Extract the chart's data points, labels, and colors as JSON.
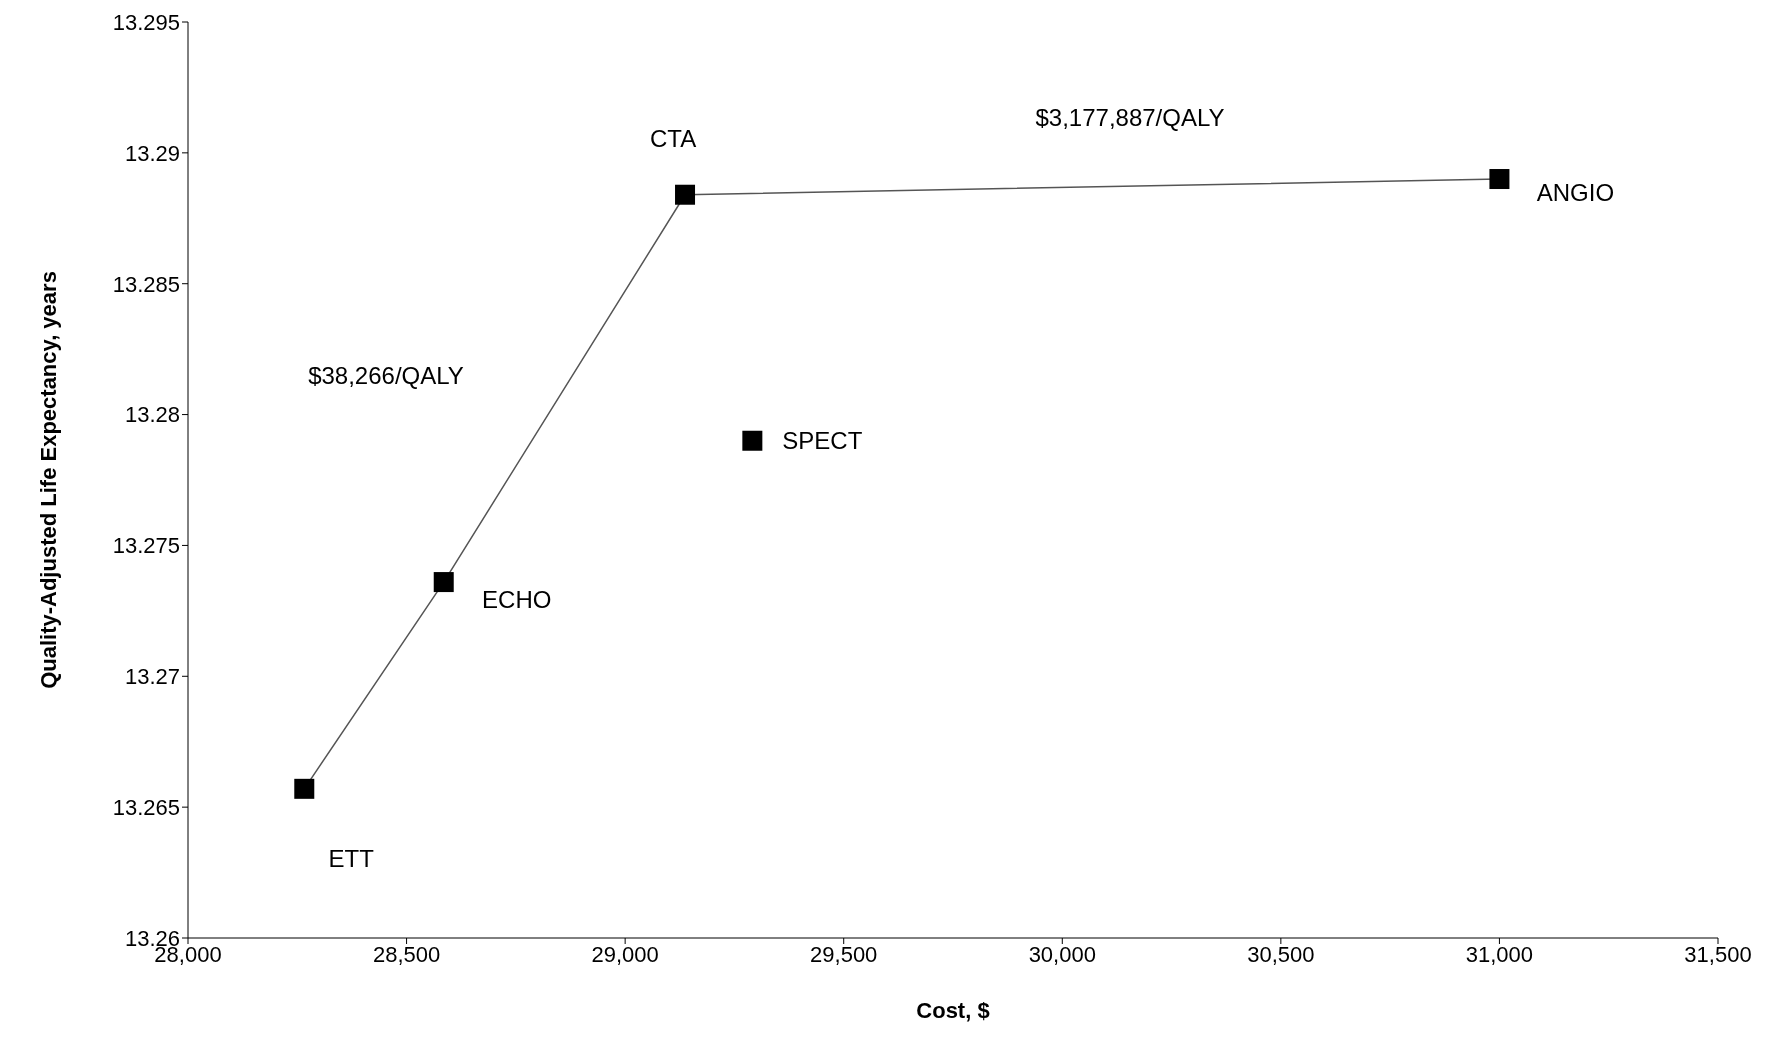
{
  "chart_data": {
    "type": "scatter",
    "xlabel": "Cost, $",
    "ylabel": "Quality-Adjusted Life Expectancy, years",
    "xlim": [
      28000,
      31500
    ],
    "xticks": [
      {
        "value": 28000,
        "label": "28,000"
      },
      {
        "value": 28500,
        "label": "28,500"
      },
      {
        "value": 29000,
        "label": "29,000"
      },
      {
        "value": 29500,
        "label": "29,500"
      },
      {
        "value": 30000,
        "label": "30,000"
      },
      {
        "value": 30500,
        "label": "30,500"
      },
      {
        "value": 31000,
        "label": "31,000"
      },
      {
        "value": 31500,
        "label": "31,500"
      }
    ],
    "ylim": [
      13.26,
      13.295
    ],
    "yticks": [
      13.26,
      13.265,
      13.27,
      13.275,
      13.28,
      13.285,
      13.29,
      13.295
    ],
    "series": [
      {
        "type": "line",
        "color": "#000000",
        "x": [
          28266,
          28585,
          29137,
          31000
        ],
        "values": [
          13.2657,
          13.2736,
          13.2884,
          13.289
        ]
      },
      {
        "color": "#000000",
        "x": [
          29291
        ],
        "values": [
          13.279
        ]
      }
    ],
    "marker": "square",
    "line_style": "solid",
    "grid": false,
    "legend": false,
    "annotations": [
      {
        "text": "ETT",
        "x": 28266,
        "y": 13.2657
      },
      {
        "text": "ECHO",
        "x": 28585,
        "y": 13.2736
      },
      {
        "text": "CTA",
        "x": 29137,
        "y": 13.2884
      },
      {
        "text": "SPECT",
        "x": 29291,
        "y": 13.279
      },
      {
        "text": "ANGIO",
        "x": 31000,
        "y": 13.289
      },
      "$38,266/QALY",
      "$3,177,887/QALY"
    ]
  }
}
